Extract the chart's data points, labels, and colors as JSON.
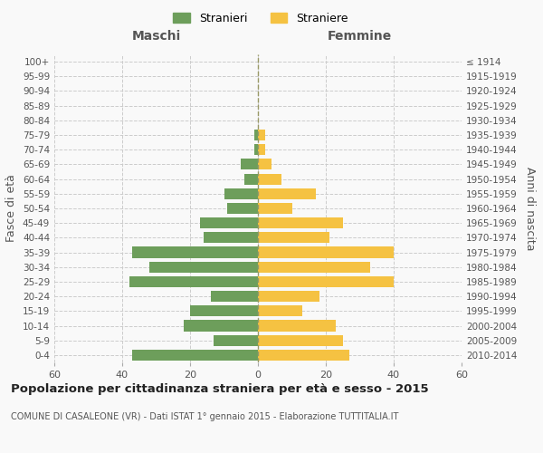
{
  "age_groups": [
    "0-4",
    "5-9",
    "10-14",
    "15-19",
    "20-24",
    "25-29",
    "30-34",
    "35-39",
    "40-44",
    "45-49",
    "50-54",
    "55-59",
    "60-64",
    "65-69",
    "70-74",
    "75-79",
    "80-84",
    "85-89",
    "90-94",
    "95-99",
    "100+"
  ],
  "birth_years": [
    "2010-2014",
    "2005-2009",
    "2000-2004",
    "1995-1999",
    "1990-1994",
    "1985-1989",
    "1980-1984",
    "1975-1979",
    "1970-1974",
    "1965-1969",
    "1960-1964",
    "1955-1959",
    "1950-1954",
    "1945-1949",
    "1940-1944",
    "1935-1939",
    "1930-1934",
    "1925-1929",
    "1920-1924",
    "1915-1919",
    "≤ 1914"
  ],
  "maschi": [
    37,
    13,
    22,
    20,
    14,
    38,
    32,
    37,
    16,
    17,
    9,
    10,
    4,
    5,
    1,
    1,
    0,
    0,
    0,
    0,
    0
  ],
  "femmine": [
    27,
    25,
    23,
    13,
    18,
    40,
    33,
    40,
    21,
    25,
    10,
    17,
    7,
    4,
    2,
    2,
    0,
    0,
    0,
    0,
    0
  ],
  "maschi_color": "#6d9e5b",
  "femmine_color": "#f5c242",
  "background_color": "#f9f9f9",
  "grid_color": "#cccccc",
  "title": "Popolazione per cittadinanza straniera per età e sesso - 2015",
  "subtitle": "COMUNE DI CASALEONE (VR) - Dati ISTAT 1° gennaio 2015 - Elaborazione TUTTITALIA.IT",
  "xlabel_left": "Maschi",
  "xlabel_right": "Femmine",
  "ylabel_left": "Fasce di età",
  "ylabel_right": "Anni di nascita",
  "legend_maschi": "Stranieri",
  "legend_femmine": "Straniere",
  "xlim": 60,
  "bar_height": 0.75
}
